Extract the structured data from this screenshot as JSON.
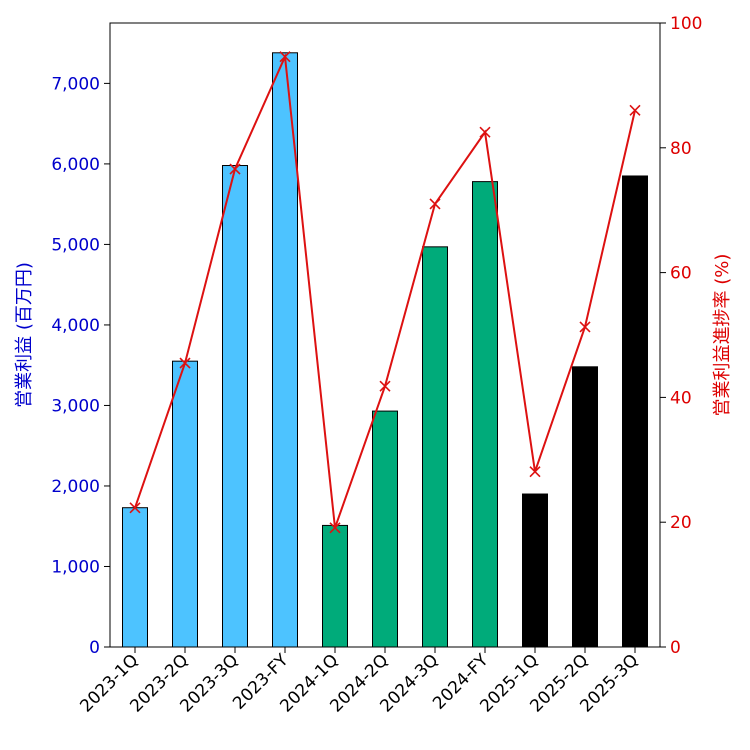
{
  "chart_data": {
    "type": "bar",
    "categories": [
      "2023-1Q",
      "2023-2Q",
      "2023-3Q",
      "2023-FY",
      "2024-1Q",
      "2024-2Q",
      "2024-3Q",
      "2024-FY",
      "2025-1Q",
      "2025-2Q",
      "2025-3Q"
    ],
    "series": [
      {
        "name": "",
        "type": "bar",
        "axis": "left",
        "values": [
          1730,
          3550,
          5980,
          7380,
          1510,
          2930,
          4970,
          5780,
          1900,
          3480,
          5850
        ],
        "colors": [
          "#4dc3ff",
          "#4dc3ff",
          "#4dc3ff",
          "#4dc3ff",
          "#00ab7a",
          "#00ab7a",
          "#00ab7a",
          "#00ab7a",
          "#000000",
          "#000000",
          "#000000"
        ]
      },
      {
        "name": "",
        "type": "line",
        "axis": "right",
        "marker": "x",
        "color": "#dd1111",
        "values": [
          22.3,
          45.5,
          76.6,
          94.6,
          19.1,
          41.8,
          71.0,
          82.5,
          28.1,
          51.3,
          86.0
        ]
      }
    ],
    "ylabel_left": "営業利益 (百万円)",
    "ylabel_right": "営業利益進捗率 (%)",
    "ylim_left": [
      0,
      7750
    ],
    "ylim_right": [
      0,
      100
    ],
    "yticks_left": [
      0,
      1000,
      2000,
      3000,
      4000,
      5000,
      6000,
      7000
    ],
    "yticks_left_labels": [
      "0",
      "1,000",
      "2,000",
      "3,000",
      "4,000",
      "5,000",
      "6,000",
      "7,000"
    ],
    "yticks_right": [
      0,
      20,
      40,
      60,
      80,
      100
    ],
    "yticks_right_labels": [
      "0",
      "20",
      "40",
      "60",
      "80",
      "100"
    ],
    "grid": false,
    "colors": {
      "left_axis": "#0000cc",
      "right_axis": "#dd0000"
    }
  }
}
